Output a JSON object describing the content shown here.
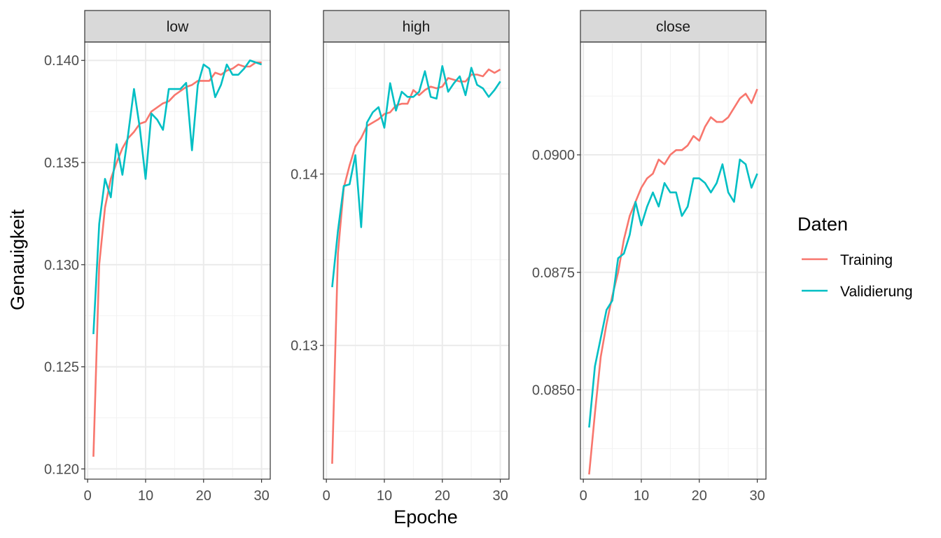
{
  "chart_data": {
    "type": "line",
    "xlabel": "Epoche",
    "ylabel": "Genauigkeit",
    "legend": {
      "title": "Daten",
      "position": "right",
      "entries": [
        {
          "name": "Training",
          "color": "#F8766D"
        },
        {
          "name": "Validierung",
          "color": "#00BFC4"
        }
      ]
    },
    "grid": true,
    "x": [
      1,
      2,
      3,
      4,
      5,
      6,
      7,
      8,
      9,
      10,
      11,
      12,
      13,
      14,
      15,
      16,
      17,
      18,
      19,
      20,
      21,
      22,
      23,
      24,
      25,
      26,
      27,
      28,
      29,
      30
    ],
    "facets": [
      {
        "title": "low",
        "xlim": [
          -0.5,
          31.5
        ],
        "xticks": [
          0,
          10,
          20,
          30
        ],
        "ylim": [
          0.1195,
          0.1409
        ],
        "yticks": [
          0.12,
          0.125,
          0.13,
          0.135,
          0.14
        ],
        "ytick_labels": [
          "0.120",
          "0.125",
          "0.130",
          "0.135",
          "0.140"
        ],
        "series": [
          {
            "name": "Training",
            "values": [
              0.1206,
              0.13,
              0.1328,
              0.1342,
              0.135,
              0.1357,
              0.1362,
              0.1365,
              0.1369,
              0.137,
              0.1375,
              0.1377,
              0.1379,
              0.138,
              0.1383,
              0.1385,
              0.1387,
              0.1388,
              0.139,
              0.139,
              0.139,
              0.1394,
              0.1393,
              0.1395,
              0.1396,
              0.1398,
              0.1397,
              0.1397,
              0.1399,
              0.1399
            ]
          },
          {
            "name": "Validierung",
            "values": [
              0.1266,
              0.132,
              0.1342,
              0.1333,
              0.1359,
              0.1344,
              0.1364,
              0.1386,
              0.1367,
              0.1342,
              0.1374,
              0.1371,
              0.1366,
              0.1386,
              0.1386,
              0.1386,
              0.1389,
              0.1356,
              0.1388,
              0.1398,
              0.1396,
              0.1382,
              0.1388,
              0.1398,
              0.1393,
              0.1393,
              0.1396,
              0.14,
              0.1399,
              0.1398
            ]
          }
        ]
      },
      {
        "title": "high",
        "xlim": [
          -0.5,
          31.5
        ],
        "xticks": [
          0,
          10,
          20,
          30
        ],
        "ylim": [
          0.1222,
          0.1477
        ],
        "yticks": [
          0.13,
          0.14
        ],
        "ytick_labels": [
          "0.13",
          "0.14"
        ],
        "series": [
          {
            "name": "Training",
            "values": [
              0.1231,
              0.1354,
              0.1392,
              0.1405,
              0.1416,
              0.1421,
              0.1428,
              0.143,
              0.1432,
              0.1435,
              0.1436,
              0.144,
              0.1441,
              0.1441,
              0.1449,
              0.1446,
              0.1449,
              0.1451,
              0.145,
              0.1451,
              0.1456,
              0.1455,
              0.1454,
              0.1454,
              0.1458,
              0.1458,
              0.1457,
              0.1461,
              0.1459,
              0.1461
            ]
          },
          {
            "name": "Validierung",
            "values": [
              0.1334,
              0.1367,
              0.1393,
              0.1394,
              0.1411,
              0.1369,
              0.143,
              0.1436,
              0.1439,
              0.1427,
              0.1453,
              0.1437,
              0.1448,
              0.1445,
              0.1445,
              0.1448,
              0.146,
              0.1445,
              0.1444,
              0.1463,
              0.1448,
              0.1453,
              0.1457,
              0.1446,
              0.1462,
              0.1452,
              0.145,
              0.1445,
              0.1449,
              0.1454
            ]
          }
        ]
      },
      {
        "title": "close",
        "xlim": [
          -0.5,
          31.5
        ],
        "xticks": [
          0,
          10,
          20,
          30
        ],
        "ylim": [
          0.0831,
          0.0924
        ],
        "yticks": [
          0.085,
          0.0875,
          0.09
        ],
        "ytick_labels": [
          "0.0850",
          "0.0875",
          "0.0900"
        ],
        "series": [
          {
            "name": "Training",
            "values": [
              0.0832,
              0.0845,
              0.0857,
              0.0864,
              0.087,
              0.0875,
              0.0882,
              0.0887,
              0.089,
              0.0893,
              0.0895,
              0.0896,
              0.0899,
              0.0898,
              0.09,
              0.0901,
              0.0901,
              0.0902,
              0.0904,
              0.0903,
              0.0906,
              0.0908,
              0.0907,
              0.0907,
              0.0908,
              0.091,
              0.0912,
              0.0913,
              0.0911,
              0.0914
            ]
          },
          {
            "name": "Validierung",
            "values": [
              0.0842,
              0.0855,
              0.0861,
              0.0867,
              0.0869,
              0.0878,
              0.0879,
              0.0883,
              0.089,
              0.0885,
              0.0889,
              0.0892,
              0.0889,
              0.0894,
              0.0892,
              0.0892,
              0.0887,
              0.0889,
              0.0895,
              0.0895,
              0.0894,
              0.0892,
              0.0894,
              0.0898,
              0.0892,
              0.089,
              0.0899,
              0.0898,
              0.0893,
              0.0896
            ]
          }
        ]
      }
    ]
  }
}
